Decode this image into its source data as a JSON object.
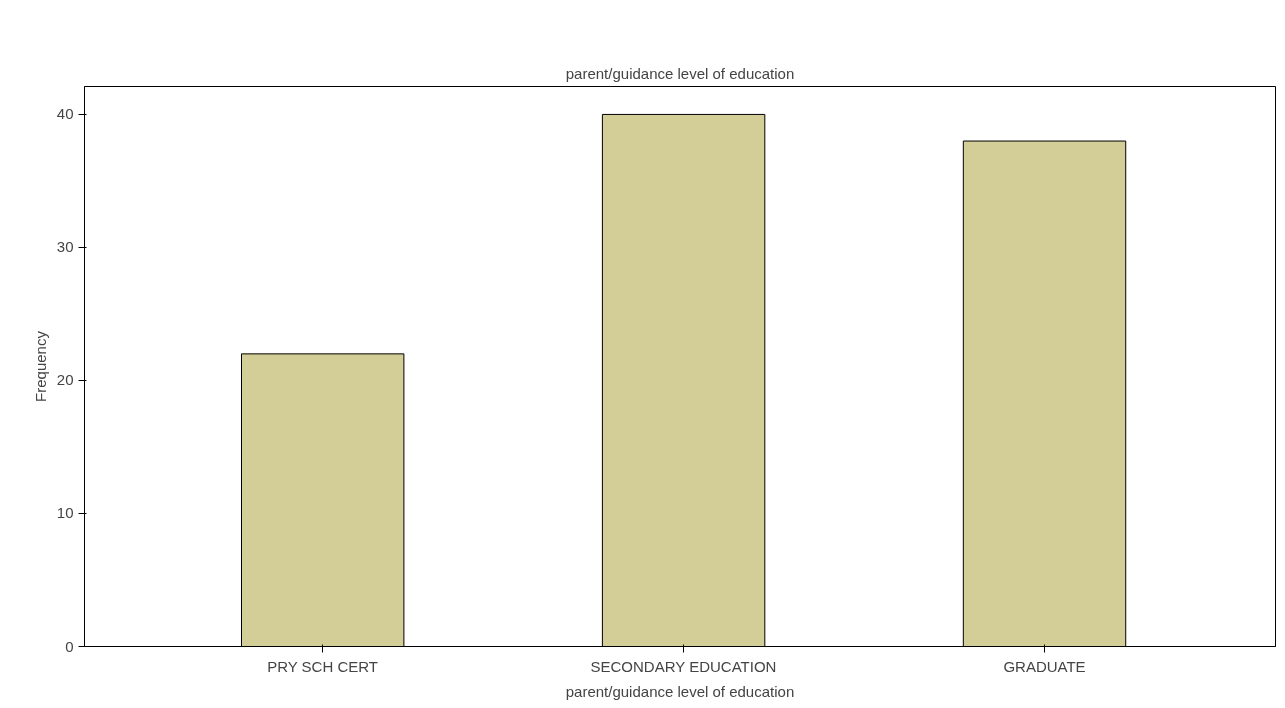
{
  "chart_data": {
    "type": "bar",
    "title": "parent/guidance level of education",
    "xlabel": "parent/guidance level of education",
    "ylabel": "Frequency",
    "categories": [
      "PRY SCH CERT",
      "SECONDARY EDUCATION",
      "GRADUATE"
    ],
    "values": [
      22,
      40,
      38
    ],
    "color": "#d3ce97",
    "ylim": [
      0,
      42.1
    ],
    "yticks": [
      0,
      10,
      20,
      30,
      40
    ],
    "grid": false
  }
}
